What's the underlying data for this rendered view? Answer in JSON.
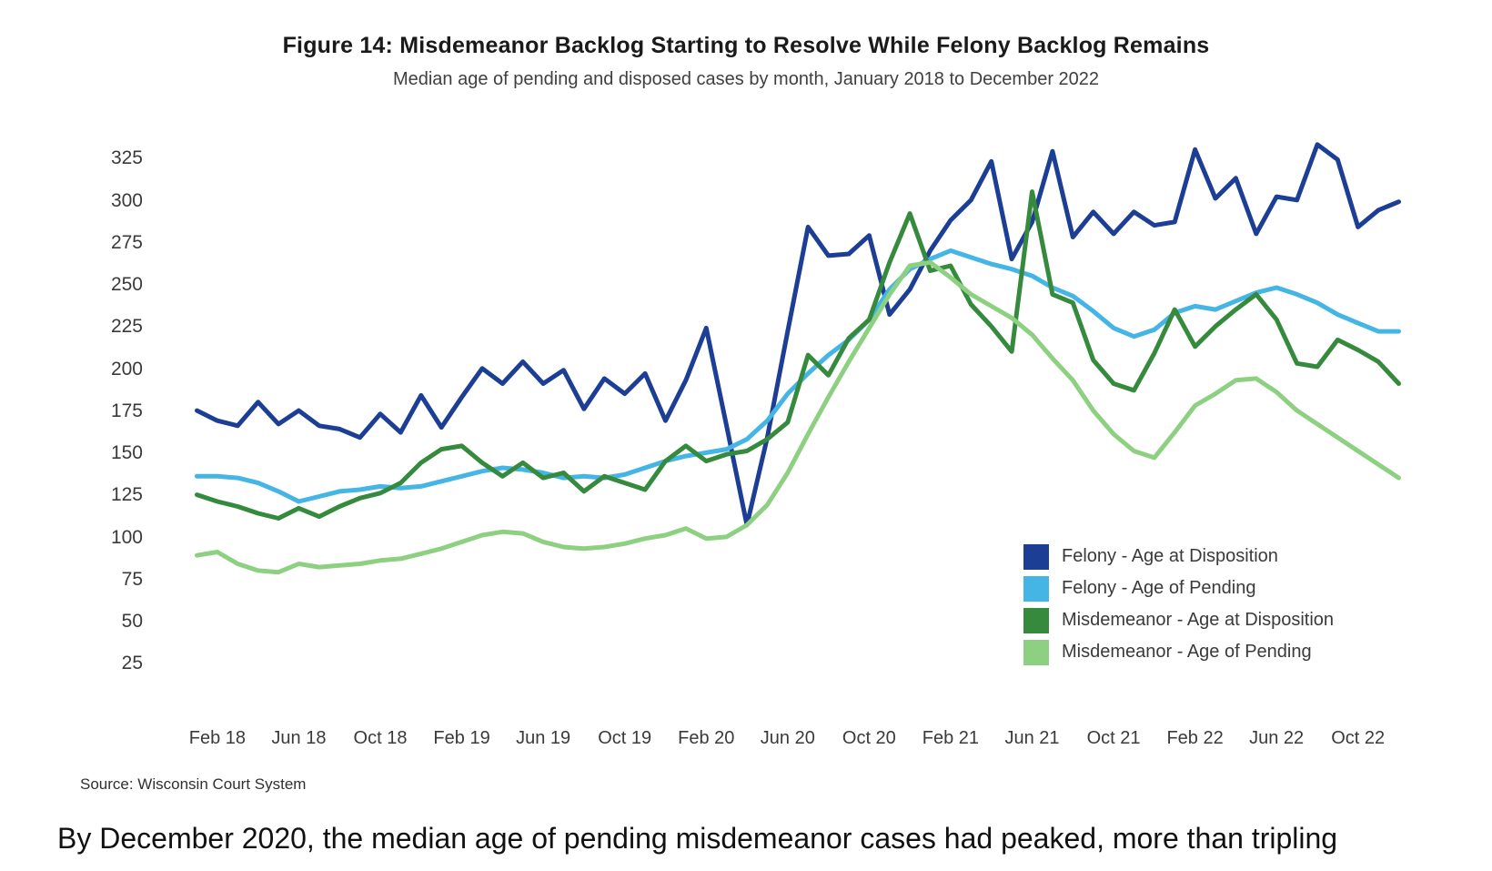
{
  "page": {
    "source_note": "Source: Wisconsin Court System",
    "caption": "By December 2020, the median age of pending misdemeanor cases had peaked, more than tripling"
  },
  "chart_data": {
    "type": "line",
    "title": "Figure 14: Misdemeanor Backlog Starting to Resolve While Felony Backlog Remains",
    "subtitle": "Median age of pending and disposed cases by month, January 2018 to December 2022",
    "x_unit": "month",
    "x_range": "January 2018 to December 2022",
    "x_tick_labels": [
      "Feb 18",
      "Jun 18",
      "Oct 18",
      "Feb 19",
      "Jun 19",
      "Oct 19",
      "Feb 20",
      "Jun 20",
      "Oct 20",
      "Feb 21",
      "Jun 21",
      "Oct 21",
      "Feb 22",
      "Jun 22",
      "Oct 22"
    ],
    "x_tick_month_indices": [
      1,
      5,
      9,
      13,
      17,
      21,
      25,
      29,
      33,
      37,
      41,
      45,
      49,
      53,
      57
    ],
    "y_ticks": [
      25,
      50,
      75,
      100,
      125,
      150,
      175,
      200,
      225,
      250,
      275,
      300,
      325
    ],
    "ylim": [
      0,
      350
    ],
    "grid": false,
    "legend_position": "lower right",
    "series": [
      {
        "name": "Felony - Age at Disposition",
        "color": "#1c3e94",
        "values": [
          176,
          170,
          167,
          181,
          168,
          176,
          167,
          165,
          160,
          174,
          163,
          185,
          166,
          184,
          201,
          192,
          205,
          192,
          200,
          177,
          195,
          186,
          198,
          170,
          194,
          225,
          167,
          108,
          160,
          223,
          285,
          268,
          269,
          280,
          233,
          248,
          271,
          289,
          301,
          324,
          266,
          288,
          330,
          279,
          294,
          281,
          294,
          286,
          288,
          331,
          302,
          314,
          281,
          303,
          301,
          334,
          325,
          285,
          295,
          300
        ]
      },
      {
        "name": "Felony - Age of Pending",
        "color": "#45b5e5",
        "values": [
          137,
          137,
          136,
          133,
          128,
          122,
          125,
          128,
          129,
          131,
          130,
          131,
          134,
          137,
          140,
          142,
          141,
          139,
          136,
          137,
          136,
          138,
          142,
          146,
          149,
          151,
          153,
          159,
          170,
          186,
          198,
          209,
          218,
          230,
          248,
          260,
          266,
          271,
          267,
          263,
          260,
          256,
          249,
          244,
          235,
          225,
          220,
          224,
          234,
          238,
          236,
          241,
          246,
          249,
          245,
          240,
          233,
          228,
          223,
          223
        ]
      },
      {
        "name": "Misdemeanor - Age at Disposition",
        "color": "#368a3d",
        "values": [
          126,
          122,
          119,
          115,
          112,
          118,
          113,
          119,
          124,
          127,
          133,
          145,
          153,
          155,
          145,
          137,
          145,
          136,
          139,
          128,
          137,
          133,
          129,
          146,
          155,
          146,
          150,
          152,
          159,
          169,
          209,
          197,
          219,
          230,
          264,
          293,
          259,
          262,
          239,
          226,
          211,
          306,
          245,
          240,
          206,
          192,
          188,
          210,
          236,
          214,
          226,
          236,
          245,
          230,
          204,
          202,
          218,
          212,
          205,
          192
        ]
      },
      {
        "name": "Misdemeanor - Age of Pending",
        "color": "#8ed082",
        "values": [
          90,
          92,
          85,
          81,
          80,
          85,
          83,
          84,
          85,
          87,
          88,
          91,
          94,
          98,
          102,
          104,
          103,
          98,
          95,
          94,
          95,
          97,
          100,
          102,
          106,
          100,
          101,
          108,
          120,
          139,
          162,
          184,
          205,
          225,
          245,
          262,
          264,
          255,
          245,
          238,
          231,
          221,
          207,
          194,
          176,
          162,
          152,
          148,
          163,
          179,
          186,
          194,
          195,
          187,
          176,
          168,
          160,
          152,
          144,
          136
        ]
      }
    ]
  }
}
